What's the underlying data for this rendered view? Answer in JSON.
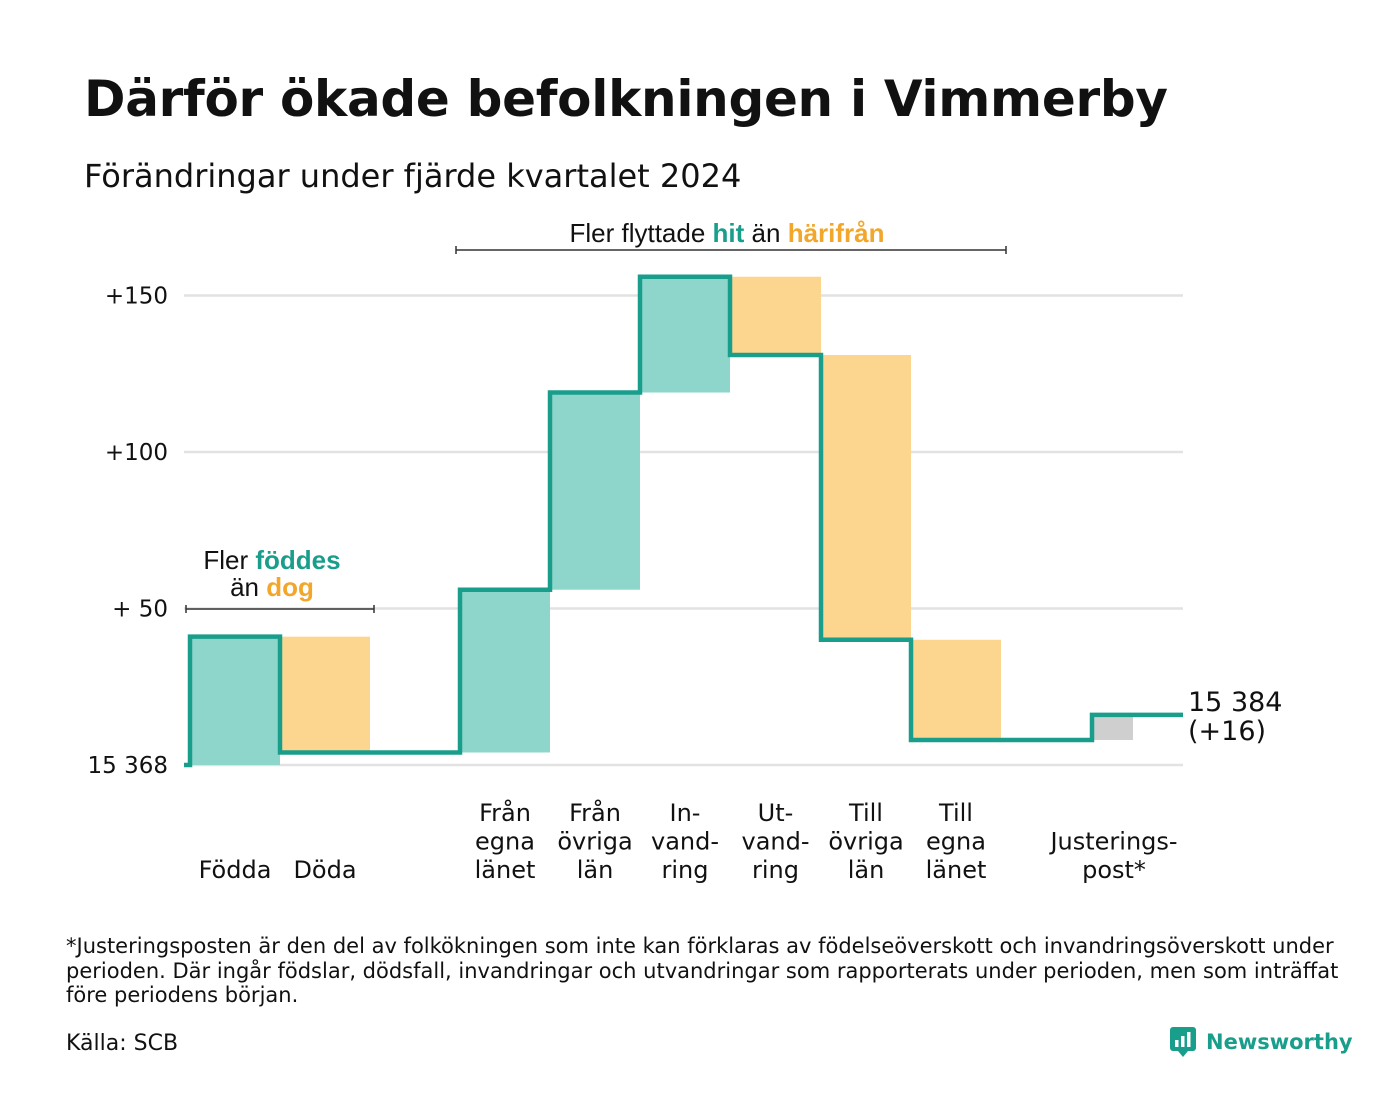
{
  "title": "Därför ökade befolkningen i Vimmerby",
  "subtitle": "Förändringar under fjärde kvartalet 2024",
  "colors": {
    "inflow": "#8ed6cb",
    "outflow": "#fcd68f",
    "adjustment": "#cfcfcf",
    "step_line": "#1a9e8c",
    "highlight_in": "#1a9e8c",
    "highlight_out": "#f2a72b",
    "grid": "#e2e2e2"
  },
  "chart_data": {
    "type": "waterfall",
    "baseline": 15368,
    "final_total": 15384,
    "net_change": 16,
    "ylim": [
      0,
      156
    ],
    "y_ticks": [
      {
        "value": 0,
        "label": "15 368"
      },
      {
        "value": 50,
        "label": "+ 50"
      },
      {
        "value": 100,
        "label": "+100"
      },
      {
        "value": 150,
        "label": "+150"
      }
    ],
    "grid": true,
    "steps": [
      {
        "label": [
          "Födda"
        ],
        "value": 41,
        "kind": "in"
      },
      {
        "label": [
          "Döda"
        ],
        "value": -37,
        "kind": "out"
      },
      {
        "label": [
          "Från",
          "egna",
          "länet"
        ],
        "value": 52,
        "kind": "in"
      },
      {
        "label": [
          "Från",
          "övriga",
          "län"
        ],
        "value": 63,
        "kind": "in"
      },
      {
        "label": [
          "In-",
          "vand-",
          "ring"
        ],
        "value": 37,
        "kind": "in"
      },
      {
        "label": [
          "Ut-",
          "vand-",
          "ring"
        ],
        "value": -25,
        "kind": "out"
      },
      {
        "label": [
          "Till",
          "övriga",
          "län"
        ],
        "value": -91,
        "kind": "out"
      },
      {
        "label": [
          "Till",
          "egna",
          "länet"
        ],
        "value": -32,
        "kind": "out"
      },
      {
        "label": [
          "Justerings-",
          "post*"
        ],
        "value": 8,
        "kind": "adjustment"
      }
    ],
    "end_label": [
      "15 384",
      "(+16)"
    ],
    "annotations": {
      "births": {
        "line1": "Fler ",
        "hl1": "föddes",
        "line2": "än ",
        "hl2": "dog"
      },
      "migration": {
        "pre": "Fler flyttade ",
        "hl1": "hit",
        "mid": " än ",
        "hl2": "härifrån"
      }
    }
  },
  "footnote": "*Justeringsposten är den del av folkökningen som inte kan förklaras av födelseöverskott och invandringsöverskott under perioden. Där ingår födslar, dödsfall, invandringar och utvandringar som rapporterats under perioden, men som inträffat före periodens början.",
  "source": "Källa: SCB",
  "brand": "Newsworthy"
}
